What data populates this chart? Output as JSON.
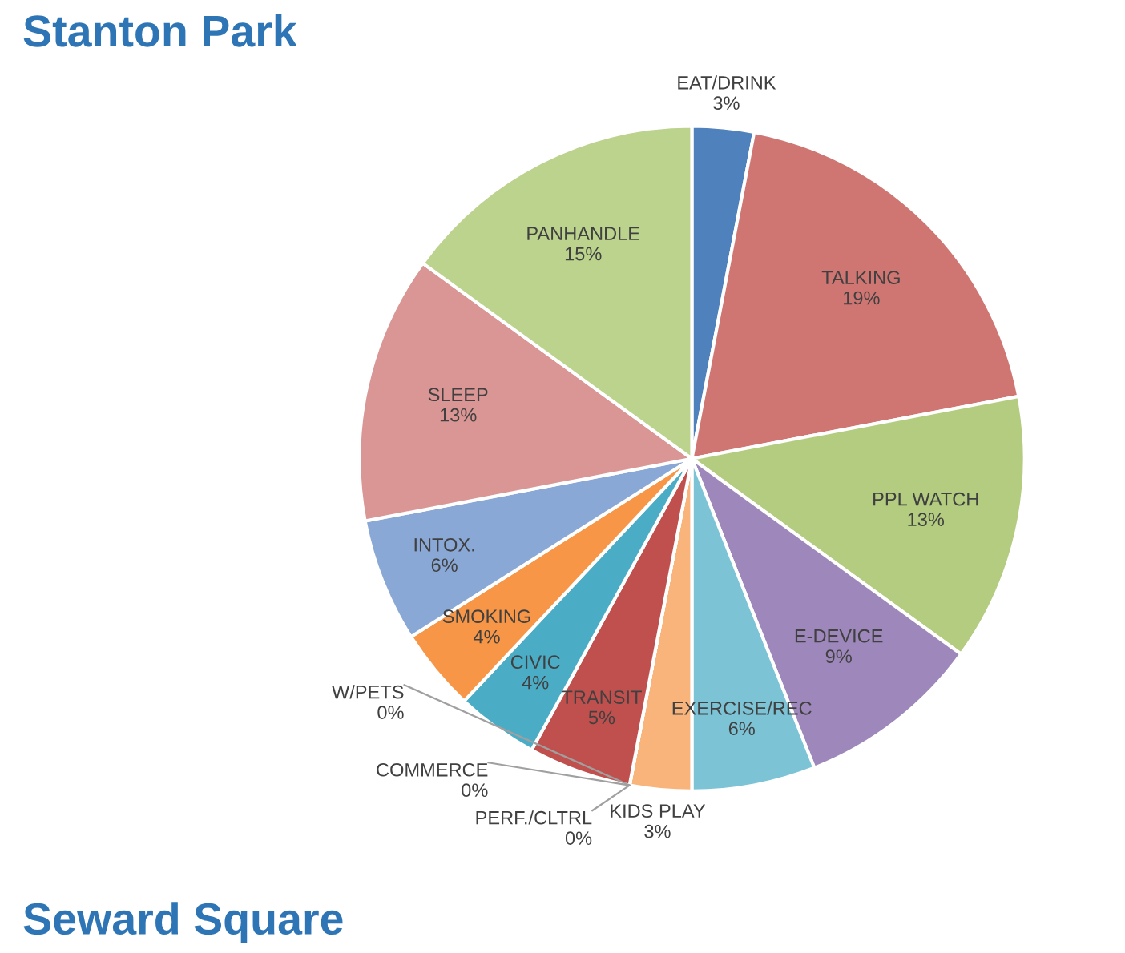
{
  "chart_data": {
    "type": "pie",
    "title": "Stanton Park",
    "categories": [
      "EAT/DRINK",
      "TALKING",
      "PPL WATCH",
      "E-DEVICE",
      "EXERCISE/REC",
      "KIDS PLAY",
      "PERF./CLTRL",
      "COMMERCE",
      "W/PETS",
      "TRANSIT",
      "CIVIC",
      "SMOKING",
      "INTOX.",
      "SLEEP",
      "PANHANDLE"
    ],
    "values": [
      3,
      19,
      13,
      9,
      6,
      3,
      0,
      0,
      0,
      5,
      4,
      4,
      6,
      13,
      15
    ],
    "value_labels": [
      "3%",
      "19%",
      "13%",
      "9%",
      "6%",
      "3%",
      "0%",
      "0%",
      "0%",
      "5%",
      "4%",
      "4%",
      "6%",
      "13%",
      "15%"
    ],
    "colors": [
      "#4f81bd",
      "#cf7673",
      "#b3cc80",
      "#9e88bb",
      "#7cc3d6",
      "#f9b47c",
      "#8b3a3a",
      "#31849b",
      "#e46c0a",
      "#c0504d",
      "#4bacc6",
      "#f79646",
      "#8aa8d6",
      "#d99694",
      "#bcd38d"
    ],
    "annotations": [
      "Seward Square"
    ]
  }
}
